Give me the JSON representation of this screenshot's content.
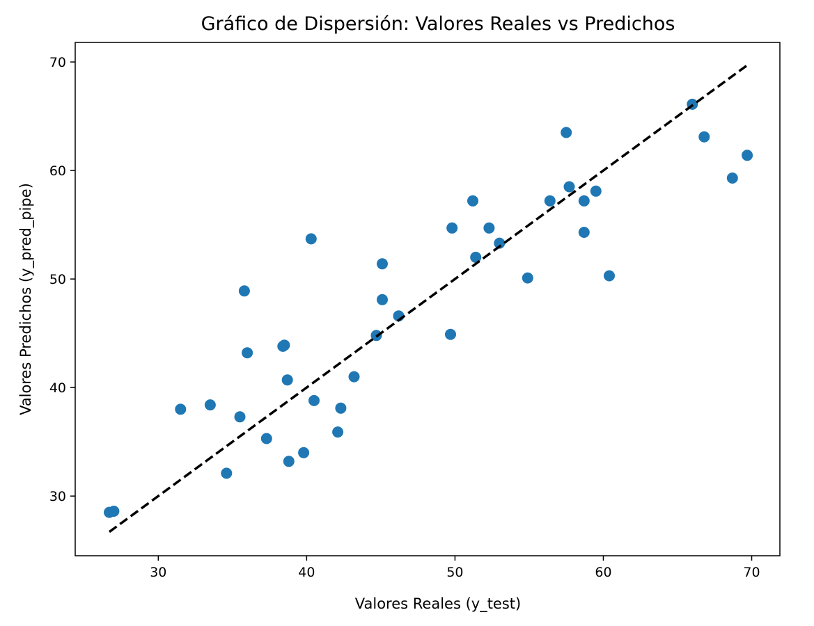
{
  "chart_data": {
    "type": "scatter",
    "title": "Gráfico de Dispersión: Valores Reales vs Predichos",
    "xlabel": "Valores Reales (y_test)",
    "ylabel": "Valores Predichos (y_pred_pipe)",
    "xlim": [
      24.4,
      71.9
    ],
    "ylim": [
      24.5,
      71.8
    ],
    "xticks": [
      30,
      40,
      50,
      60,
      70
    ],
    "yticks": [
      30,
      40,
      50,
      60,
      70
    ],
    "grid": false,
    "series": [
      {
        "color": "#1f77b4",
        "points": [
          [
            26.7,
            28.5
          ],
          [
            27.0,
            28.6
          ],
          [
            31.5,
            38.0
          ],
          [
            33.5,
            38.4
          ],
          [
            34.6,
            32.1
          ],
          [
            35.5,
            37.3
          ],
          [
            35.8,
            48.9
          ],
          [
            36.0,
            43.2
          ],
          [
            37.3,
            35.3
          ],
          [
            38.4,
            43.8
          ],
          [
            38.5,
            43.9
          ],
          [
            38.7,
            40.7
          ],
          [
            38.8,
            33.2
          ],
          [
            39.8,
            34.0
          ],
          [
            40.3,
            53.7
          ],
          [
            40.5,
            38.8
          ],
          [
            42.1,
            35.9
          ],
          [
            42.3,
            38.1
          ],
          [
            43.2,
            41.0
          ],
          [
            44.7,
            44.8
          ],
          [
            45.1,
            48.1
          ],
          [
            45.1,
            51.4
          ],
          [
            46.2,
            46.6
          ],
          [
            49.7,
            44.9
          ],
          [
            49.8,
            54.7
          ],
          [
            51.2,
            57.2
          ],
          [
            51.4,
            52.0
          ],
          [
            52.3,
            54.7
          ],
          [
            53.0,
            53.3
          ],
          [
            54.9,
            50.1
          ],
          [
            56.4,
            57.2
          ],
          [
            57.5,
            63.5
          ],
          [
            57.7,
            58.5
          ],
          [
            58.7,
            57.2
          ],
          [
            58.7,
            54.3
          ],
          [
            59.5,
            58.1
          ],
          [
            60.4,
            50.3
          ],
          [
            66.0,
            66.1
          ],
          [
            66.8,
            63.1
          ],
          [
            68.7,
            59.3
          ],
          [
            69.7,
            61.4
          ]
        ]
      }
    ],
    "reference_line": {
      "style": "dashed",
      "color": "#000000",
      "x": [
        26.7,
        69.7
      ],
      "y": [
        26.7,
        69.7
      ]
    }
  }
}
